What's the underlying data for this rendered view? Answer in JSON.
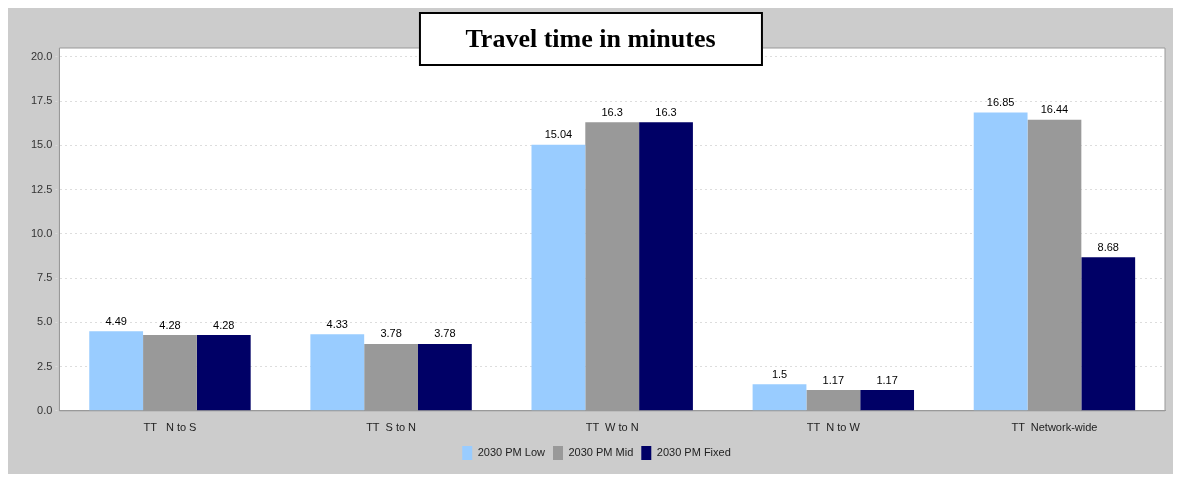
{
  "chart_data": {
    "type": "bar",
    "title": "Travel time in minutes",
    "categories": [
      "TT   N to S",
      "TT  S to N",
      "TT  W to N",
      "TT  N to W",
      "TT  Network-wide"
    ],
    "series": [
      {
        "name": "2030 PM Low",
        "color": "#99ccff",
        "values": [
          4.49,
          4.33,
          15.04,
          1.5,
          16.85
        ]
      },
      {
        "name": "2030 PM Mid",
        "color": "#999999",
        "values": [
          4.28,
          3.78,
          16.3,
          1.17,
          16.44
        ]
      },
      {
        "name": "2030 PM Fixed",
        "color": "#000066",
        "values": [
          4.28,
          3.78,
          16.3,
          1.17,
          8.68
        ]
      }
    ],
    "ylim": [
      0,
      20.5
    ],
    "yticks": [
      {
        "value": 0,
        "label": "0.0"
      },
      {
        "value": 2.5,
        "label": "2.5"
      },
      {
        "value": 5,
        "label": "5.0"
      },
      {
        "value": 7.5,
        "label": "7.5"
      },
      {
        "value": 10,
        "label": "10.0"
      },
      {
        "value": 12.5,
        "label": "12.5"
      },
      {
        "value": 15,
        "label": "15.0"
      },
      {
        "value": 17.5,
        "label": "17.5"
      },
      {
        "value": 20,
        "label": "20.0"
      }
    ],
    "grid": "y",
    "legend": "bottom",
    "data_labels": true
  }
}
